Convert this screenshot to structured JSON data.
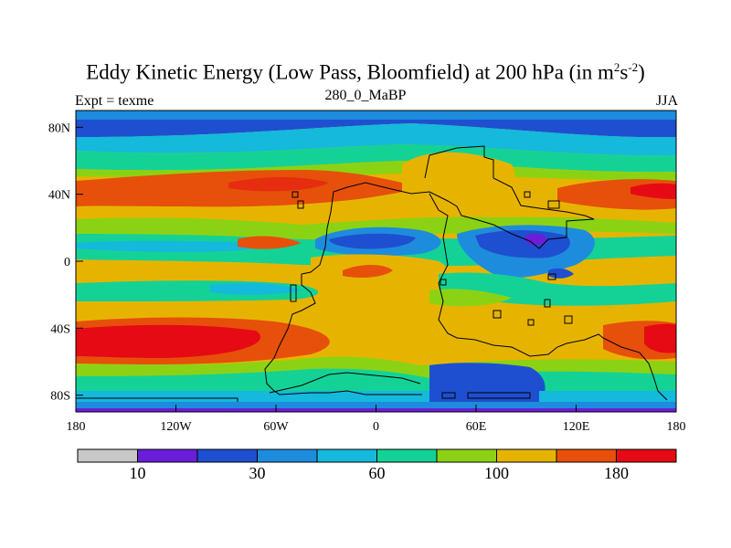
{
  "title": {
    "main": "Eddy Kinetic Energy (Low Pass, Bloomfield) at 200 hPa (in m",
    "sup1": "2",
    "mid": "s",
    "sup2": "-2",
    "end": ")"
  },
  "subtitles": {
    "left": "Expt = texme",
    "center": "280_0_MaBP",
    "right": "JJA"
  },
  "axes": {
    "x_ticks": [
      {
        "lon": -180,
        "label": "180"
      },
      {
        "lon": -120,
        "label": "120W"
      },
      {
        "lon": -60,
        "label": "60W"
      },
      {
        "lon": 0,
        "label": "0"
      },
      {
        "lon": 60,
        "label": "60E"
      },
      {
        "lon": 120,
        "label": "120E"
      },
      {
        "lon": 180,
        "label": "180"
      }
    ],
    "y_ticks": [
      {
        "lat": 80,
        "label": "80N"
      },
      {
        "lat": 40,
        "label": "40N"
      },
      {
        "lat": 0,
        "label": "0"
      },
      {
        "lat": -40,
        "label": "40S"
      },
      {
        "lat": -80,
        "label": "80S"
      }
    ],
    "lon_range": [
      -180,
      180
    ],
    "lat_range": [
      -90,
      90
    ]
  },
  "colorbar": {
    "colors": [
      "#c8c8c8",
      "#6a1ed8",
      "#1e4fd0",
      "#1e8cdc",
      "#14b9dc",
      "#14d296",
      "#8cd214",
      "#e6b400",
      "#e6500a",
      "#e60a14"
    ],
    "labels": [
      {
        "index": 1,
        "text": "10"
      },
      {
        "index": 3,
        "text": "30"
      },
      {
        "index": 5,
        "text": "60"
      },
      {
        "index": 7,
        "text": "100"
      },
      {
        "index": 9,
        "text": "180"
      }
    ]
  }
}
